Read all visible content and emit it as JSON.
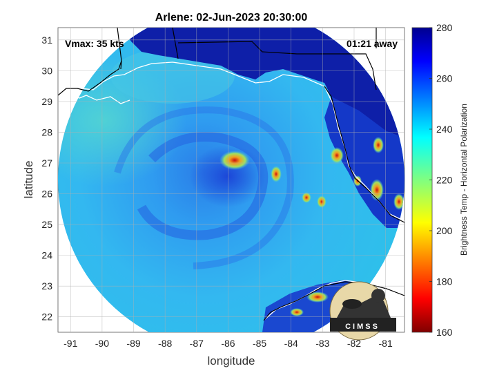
{
  "title": "Arlene: 02-Jun-2023 20:30:00",
  "vmax_label": "Vmax: 35 kts",
  "time_away_label": "01:21 away",
  "logo_text": "CIMSS",
  "axes": {
    "xlabel": "longitude",
    "ylabel": "latitude",
    "xticks": [
      "-91",
      "-90",
      "-89",
      "-88",
      "-87",
      "-86",
      "-85",
      "-84",
      "-83",
      "-82",
      "-81"
    ],
    "yticks": [
      "31",
      "30",
      "29",
      "28",
      "27",
      "26",
      "25",
      "24",
      "23",
      "22"
    ],
    "xlim": [
      -91.4,
      -80.4
    ],
    "ylim": [
      21.5,
      31.4
    ],
    "grid": true
  },
  "colorbar": {
    "label": "Brightness Temp - Horizontal Polarization",
    "ticks": [
      "280",
      "260",
      "240",
      "220",
      "200",
      "180",
      "160"
    ],
    "range": [
      160,
      280
    ],
    "colormap": "jet"
  },
  "colors": {
    "background_scan": "#2fb4f0",
    "warm_land": "#0d1a9c",
    "coast": "#ffffff",
    "state_lines": "#000000"
  }
}
